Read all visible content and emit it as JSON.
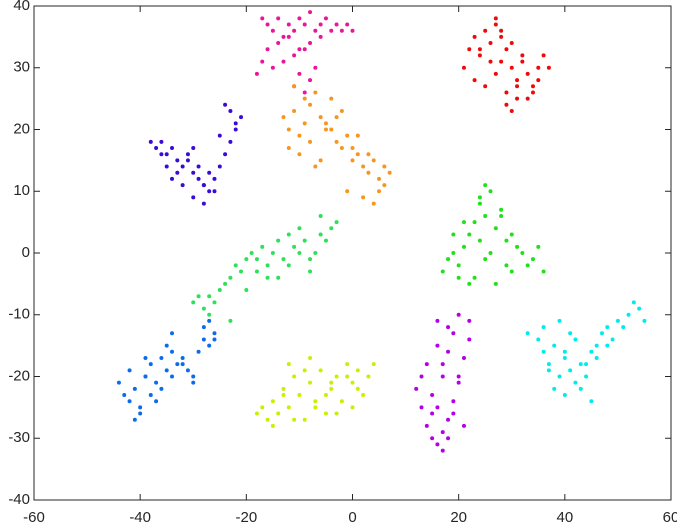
{
  "chart_data": {
    "type": "scatter",
    "xlim": [
      -60,
      60
    ],
    "xticks": [
      -60,
      -40,
      -20,
      0,
      20,
      40,
      60
    ],
    "ylim": [
      -40,
      40
    ],
    "yticks": [
      -40,
      -30,
      -20,
      -10,
      0,
      10,
      20,
      30,
      40
    ],
    "grid": false,
    "series": [
      {
        "color": "#e8179a",
        "x": [
          -17,
          -16,
          -15,
          -14,
          -13,
          -12,
          -11,
          -10,
          -9,
          -8,
          -7,
          -6,
          -5,
          -4,
          -3,
          -2,
          -1,
          0,
          -16,
          -14,
          -12,
          -10,
          -8,
          -6,
          -15,
          -13,
          -11,
          -9,
          -10,
          -8,
          -7,
          -11,
          -9,
          -18,
          -17
        ],
        "values": [
          38,
          37,
          36,
          38,
          35,
          37,
          36,
          38,
          37,
          39,
          36,
          37,
          38,
          36,
          37,
          36,
          37,
          36,
          33,
          34,
          35,
          33,
          34,
          35,
          30,
          31,
          32,
          33,
          29,
          28,
          30,
          27,
          26,
          29,
          31
        ]
      },
      {
        "color": "#ee0a0a",
        "x": [
          21,
          22,
          23,
          24,
          25,
          26,
          27,
          28,
          29,
          30,
          31,
          32,
          33,
          34,
          35,
          36,
          37,
          23,
          25,
          27,
          29,
          31,
          33,
          35,
          24,
          26,
          28,
          30,
          32,
          34,
          29,
          30,
          31,
          27,
          28
        ],
        "values": [
          30,
          33,
          35,
          32,
          36,
          34,
          38,
          31,
          33,
          30,
          28,
          31,
          29,
          27,
          30,
          32,
          30,
          28,
          27,
          29,
          26,
          27,
          25,
          28,
          33,
          31,
          35,
          34,
          32,
          26,
          24,
          23,
          25,
          37,
          36
        ]
      },
      {
        "color": "#3a0ad6",
        "x": [
          -38,
          -37,
          -36,
          -35,
          -34,
          -33,
          -32,
          -31,
          -30,
          -29,
          -28,
          -27,
          -26,
          -25,
          -24,
          -23,
          -22,
          -21,
          -34,
          -32,
          -30,
          -28,
          -26,
          -31,
          -29,
          -27,
          -33,
          -30,
          -28,
          -24,
          -23,
          -22,
          -25,
          -36,
          -35
        ],
        "values": [
          18,
          17,
          18,
          16,
          17,
          15,
          14,
          16,
          13,
          12,
          11,
          10,
          12,
          14,
          16,
          18,
          20,
          22,
          12,
          11,
          9,
          8,
          10,
          15,
          14,
          13,
          13,
          17,
          11,
          24,
          23,
          21,
          19,
          16,
          14
        ]
      },
      {
        "color": "#f7961e",
        "x": [
          -13,
          -12,
          -11,
          -10,
          -9,
          -8,
          -7,
          -6,
          -5,
          -4,
          -3,
          -2,
          -1,
          0,
          1,
          2,
          3,
          4,
          5,
          6,
          7,
          -12,
          -10,
          -8,
          -6,
          -4,
          -2,
          0,
          2,
          4,
          -11,
          -9,
          -7,
          -5,
          -3,
          -1,
          1,
          3,
          5,
          6
        ],
        "values": [
          22,
          20,
          23,
          19,
          21,
          24,
          26,
          22,
          20,
          25,
          18,
          17,
          19,
          15,
          16,
          14,
          13,
          15,
          12,
          11,
          13,
          17,
          16,
          18,
          15,
          20,
          23,
          17,
          9,
          8,
          27,
          25,
          14,
          21,
          22,
          10,
          19,
          16,
          10,
          14
        ]
      },
      {
        "color": "#2ee05a",
        "x": [
          -30,
          -28,
          -27,
          -26,
          -24,
          -22,
          -20,
          -19,
          -18,
          -17,
          -16,
          -15,
          -14,
          -13,
          -12,
          -11,
          -10,
          -9,
          -8,
          -7,
          -6,
          -5,
          -4,
          -3,
          -25,
          -23,
          -21,
          -14,
          -12,
          -10,
          -8,
          -29,
          -27,
          -23,
          -20,
          -18,
          -16,
          -6
        ],
        "values": [
          -8,
          -9,
          -7,
          -8,
          -5,
          -2,
          -1,
          0,
          -3,
          1,
          -2,
          0,
          2,
          -1,
          3,
          1,
          4,
          2,
          -1,
          0,
          3,
          2,
          4,
          5,
          -6,
          -4,
          -3,
          -4,
          -2,
          0,
          -3,
          -7,
          -10,
          -11,
          -6,
          -1,
          -4,
          6
        ]
      },
      {
        "color": "#22e01c",
        "x": [
          17,
          18,
          19,
          20,
          21,
          22,
          23,
          24,
          25,
          26,
          27,
          28,
          29,
          30,
          31,
          32,
          33,
          34,
          35,
          36,
          20,
          22,
          24,
          26,
          28,
          30,
          23,
          25,
          27,
          21,
          24,
          29,
          19,
          25
        ],
        "values": [
          -3,
          -1,
          0,
          -2,
          1,
          3,
          5,
          2,
          -1,
          0,
          4,
          6,
          2,
          -3,
          1,
          0,
          -2,
          -1,
          1,
          -3,
          -4,
          -5,
          8,
          10,
          7,
          3,
          -4,
          11,
          -5,
          5,
          9,
          -2,
          3,
          6
        ]
      },
      {
        "color": "#0a6cec",
        "x": [
          -44,
          -43,
          -42,
          -41,
          -40,
          -39,
          -38,
          -37,
          -36,
          -35,
          -34,
          -33,
          -32,
          -31,
          -30,
          -29,
          -28,
          -27,
          -26,
          -42,
          -40,
          -38,
          -36,
          -34,
          -32,
          -30,
          -41,
          -39,
          -37,
          -35,
          -28,
          -27,
          -26,
          -34,
          -39
        ],
        "values": [
          -21,
          -23,
          -19,
          -22,
          -25,
          -20,
          -18,
          -21,
          -17,
          -19,
          -16,
          -18,
          -17,
          -19,
          -20,
          -16,
          -14,
          -15,
          -13,
          -24,
          -26,
          -23,
          -22,
          -20,
          -18,
          -21,
          -27,
          -17,
          -24,
          -15,
          -12,
          -11,
          -14,
          -13,
          -20
        ]
      },
      {
        "color": "#c8f000",
        "x": [
          -18,
          -17,
          -16,
          -15,
          -14,
          -13,
          -12,
          -11,
          -10,
          -9,
          -8,
          -7,
          -6,
          -5,
          -4,
          -3,
          -2,
          -1,
          0,
          1,
          2,
          3,
          4,
          -15,
          -13,
          -11,
          -9,
          -7,
          -5,
          -3,
          -1,
          1,
          -12,
          -8,
          -4,
          0
        ],
        "values": [
          -26,
          -25,
          -27,
          -24,
          -26,
          -22,
          -25,
          -20,
          -23,
          -27,
          -21,
          -24,
          -19,
          -26,
          -22,
          -20,
          -24,
          -18,
          -21,
          -19,
          -23,
          -20,
          -18,
          -28,
          -23,
          -27,
          -19,
          -25,
          -23,
          -26,
          -20,
          -22,
          -18,
          -17,
          -21,
          -25
        ]
      },
      {
        "color": "#b400e6",
        "x": [
          12,
          13,
          14,
          15,
          16,
          17,
          18,
          19,
          20,
          21,
          22,
          14,
          16,
          18,
          20,
          15,
          17,
          19,
          21,
          16,
          18,
          20,
          17,
          19,
          15,
          13,
          18,
          16,
          22,
          17
        ],
        "values": [
          -22,
          -25,
          -28,
          -30,
          -31,
          -32,
          -27,
          -24,
          -20,
          -17,
          -14,
          -18,
          -15,
          -12,
          -10,
          -23,
          -20,
          -26,
          -28,
          -11,
          -16,
          -21,
          -29,
          -13,
          -26,
          -20,
          -30,
          -25,
          -11,
          -18
        ]
      },
      {
        "color": "#00ecec",
        "x": [
          33,
          35,
          36,
          37,
          38,
          39,
          40,
          41,
          42,
          43,
          44,
          45,
          46,
          47,
          48,
          49,
          50,
          51,
          52,
          53,
          54,
          55,
          38,
          40,
          42,
          44,
          46,
          48,
          36,
          39,
          41,
          43,
          45,
          37,
          40
        ],
        "values": [
          -13,
          -14,
          -16,
          -18,
          -15,
          -20,
          -17,
          -19,
          -14,
          -22,
          -18,
          -16,
          -15,
          -13,
          -12,
          -14,
          -11,
          -12,
          -10,
          -8,
          -9,
          -11,
          -22,
          -23,
          -21,
          -20,
          -17,
          -15,
          -12,
          -11,
          -13,
          -18,
          -24,
          -19,
          -16
        ]
      }
    ]
  }
}
